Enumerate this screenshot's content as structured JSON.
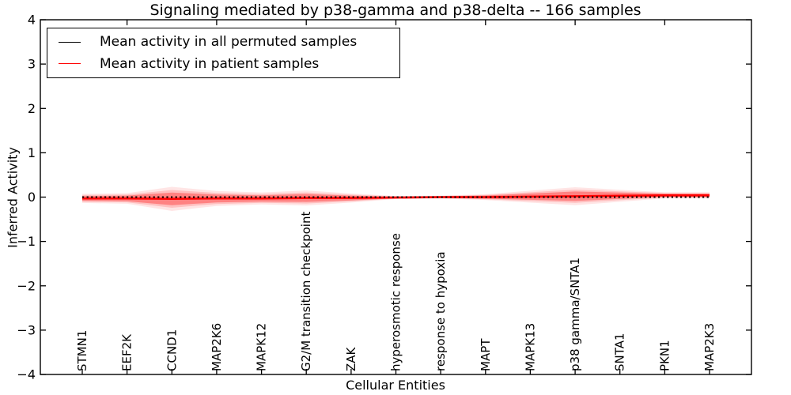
{
  "chart_data": {
    "type": "line",
    "title": "Signaling mediated by p38-gamma and p38-delta -- 166 samples",
    "xlabel": "Cellular Entities",
    "ylabel": "Inferred Activity",
    "ylim": [
      -4,
      4
    ],
    "yticks": [
      4,
      3,
      2,
      1,
      0,
      -1,
      -2,
      -3,
      -4
    ],
    "grid": false,
    "legend_position": "upper left",
    "categories": [
      "STMN1",
      "EEF2K",
      "CCND1",
      "MAP2K6",
      "MAPK12",
      "G2/M transition checkpoint",
      "ZAK",
      "hyperosmotic response",
      "response to hypoxia",
      "MAPT",
      "MAPK13",
      "p38 gamma/SNTA1",
      "SNTA1",
      "PKN1",
      "MAP2K3"
    ],
    "series": [
      {
        "name": "Mean activity in all permuted samples",
        "color": "#000000",
        "style": "dotted",
        "values": [
          0,
          0,
          0,
          0,
          0,
          0,
          0,
          0,
          0,
          0,
          0,
          0,
          0,
          0,
          0
        ]
      },
      {
        "name": "Mean activity in patient samples",
        "color": "#ff0000",
        "style": "solid",
        "values": [
          -0.03,
          -0.03,
          -0.04,
          -0.03,
          -0.03,
          -0.02,
          -0.02,
          -0.01,
          0.0,
          0.0,
          0.01,
          0.02,
          0.03,
          0.04,
          0.04
        ]
      }
    ],
    "band": {
      "center_series": "Mean activity in patient samples",
      "color": "#ff0000",
      "halfwidths": [
        0.054,
        0.063,
        0.143,
        0.089,
        0.071,
        0.089,
        0.054,
        0.018,
        0.018,
        0.036,
        0.071,
        0.107,
        0.071,
        0.036,
        0.036
      ]
    }
  }
}
